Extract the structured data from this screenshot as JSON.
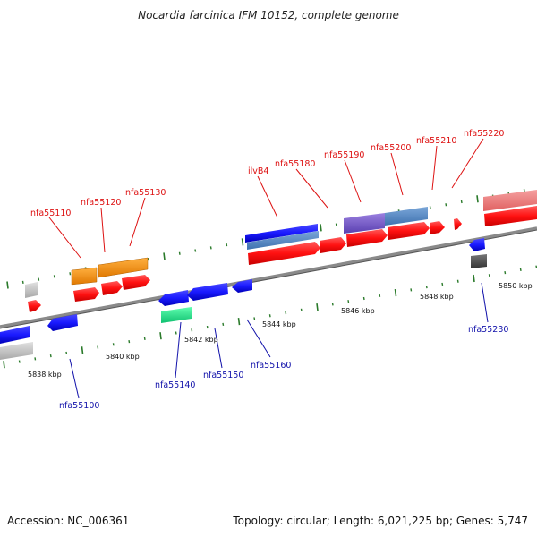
{
  "title": "Nocardia farcinica IFM 10152, complete genome",
  "footer": {
    "accession": "Accession: NC_006361",
    "topology": "Topology: circular; Length: 6,021,225 bp; Genes: 5,747"
  },
  "colors": {
    "top_label": "#dd1111",
    "bottom_label": "#1111aa",
    "axis": "#808080",
    "tick": "#2a7a2a",
    "forward_gene": "#ff1a1a",
    "reverse_gene": "#1a1aff"
  },
  "position_labels": [
    "5838 kbp",
    "5840 kbp",
    "5842 kbp",
    "5844 kbp",
    "5846 kbp",
    "5848 kbp",
    "5850 kbp"
  ],
  "gene_labels": {
    "top": [
      "nfa55110",
      "nfa55120",
      "nfa55130",
      "ilvB4",
      "nfa55180",
      "nfa55190",
      "nfa55200",
      "nfa55210",
      "nfa55220"
    ],
    "bottom": [
      "nfa55100",
      "nfa55140",
      "nfa55150",
      "nfa55160",
      "nfa55230"
    ]
  }
}
